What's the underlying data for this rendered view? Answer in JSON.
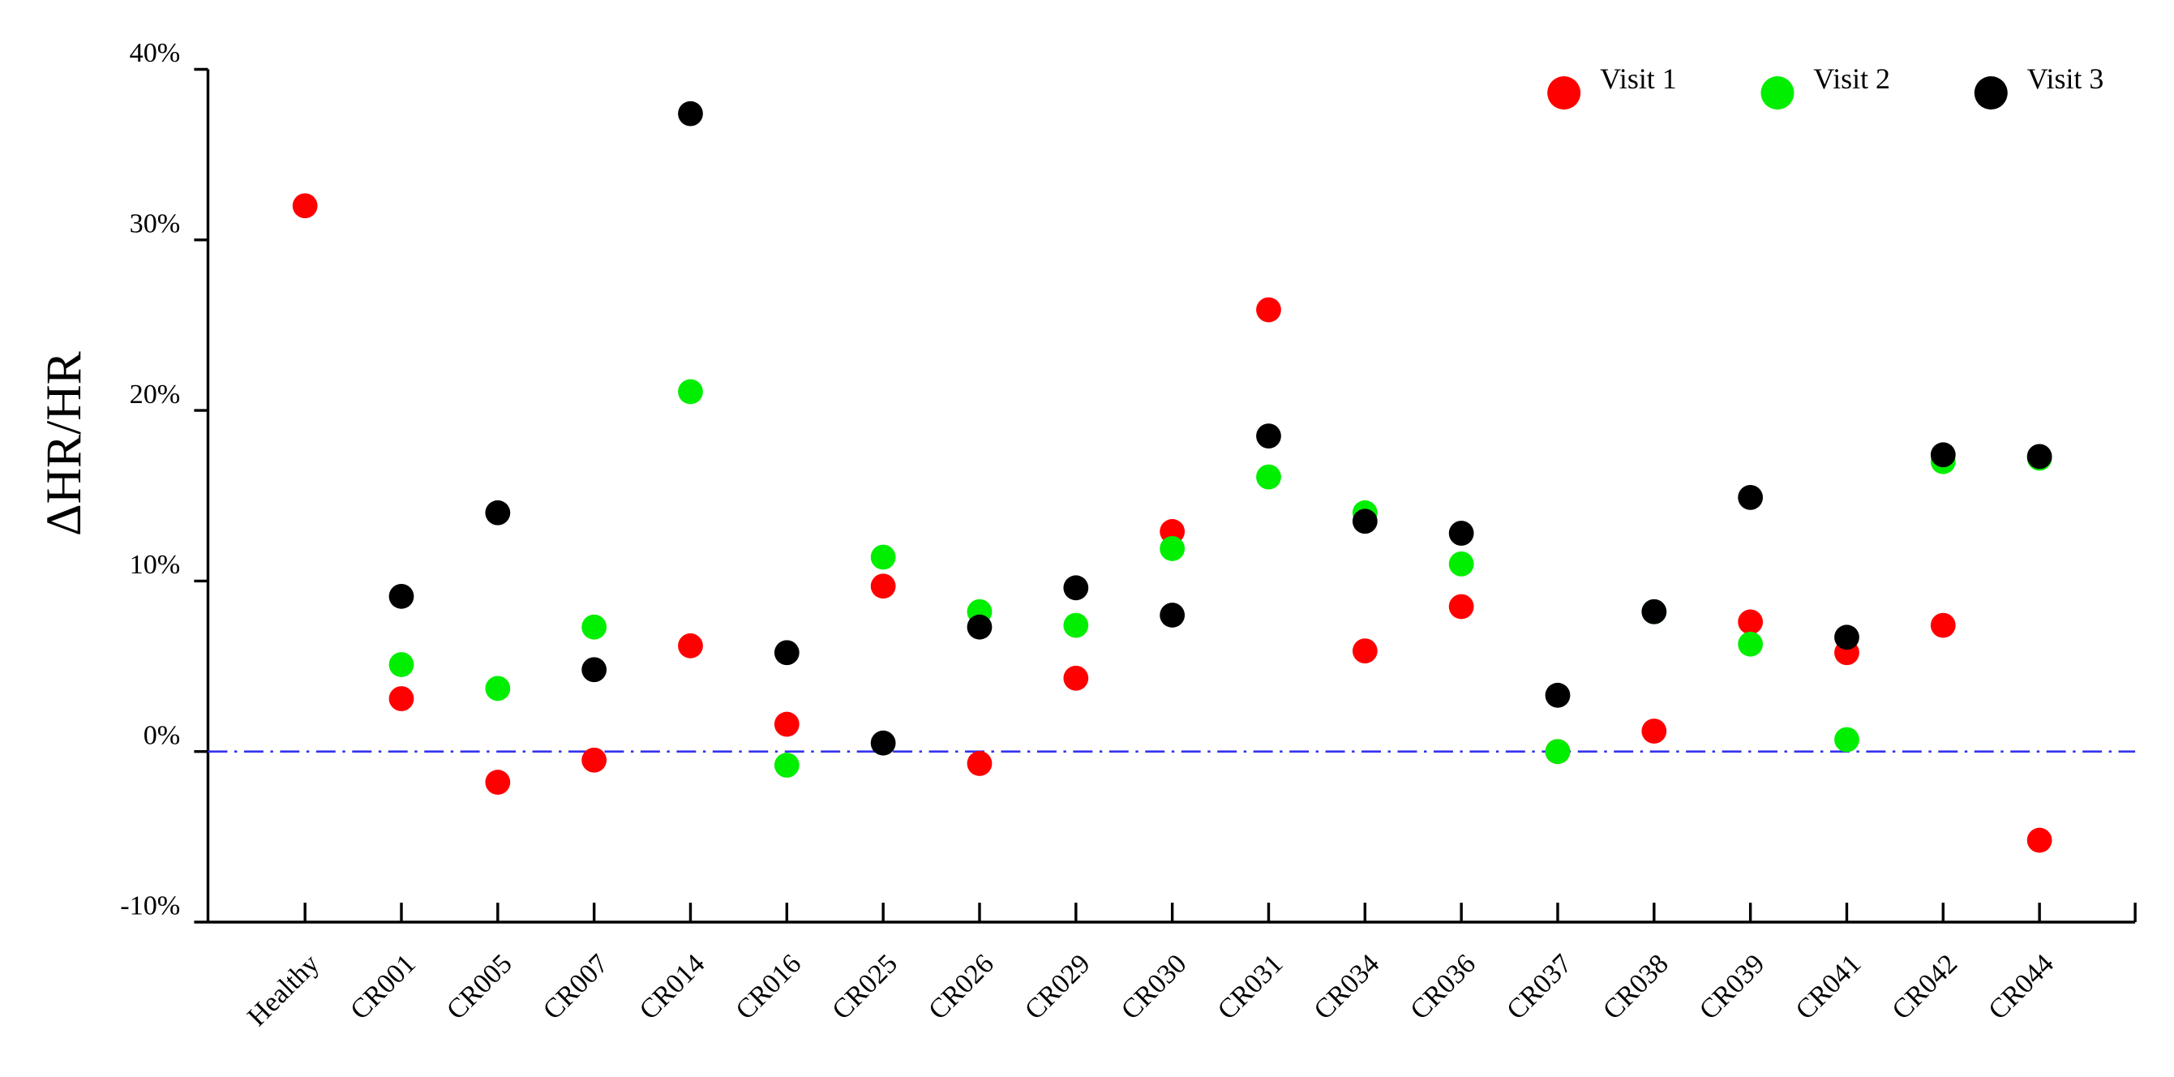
{
  "chart_data": {
    "type": "scatter",
    "y_label": "ΔHR/HR",
    "categories": [
      "Healthy",
      "CR001",
      "CR005",
      "CR007",
      "CR014",
      "CR016",
      "CR025",
      "CR026",
      "CR029",
      "CR030",
      "CR031",
      "CR034",
      "CR036",
      "CR037",
      "CR038",
      "CR039",
      "CR041",
      "CR042",
      "CR044"
    ],
    "series": [
      {
        "name": "Visit 1",
        "color": "#ff0000",
        "values": [
          32.0,
          3.1,
          -1.8,
          -0.5,
          6.2,
          1.6,
          9.7,
          -0.7,
          4.3,
          12.9,
          25.9,
          5.9,
          8.5,
          0.0,
          1.2,
          7.6,
          5.8,
          7.4,
          -5.2
        ]
      },
      {
        "name": "Visit 2",
        "color": "#00ee00",
        "values": [
          null,
          5.1,
          3.7,
          7.3,
          21.1,
          -0.8,
          11.4,
          8.2,
          7.4,
          11.9,
          16.1,
          14.0,
          11.0,
          0.0,
          8.2,
          6.3,
          0.7,
          17.0,
          17.2
        ]
      },
      {
        "name": "Visit 3",
        "color": "#000000",
        "values": [
          null,
          9.1,
          14.0,
          4.8,
          37.4,
          5.8,
          0.5,
          7.3,
          9.6,
          8.0,
          18.5,
          13.5,
          12.8,
          3.3,
          8.2,
          14.9,
          6.7,
          17.4,
          17.3
        ]
      }
    ],
    "ylim": [
      -10,
      40
    ],
    "yticks": [
      {
        "value": -10,
        "label": "-10%"
      },
      {
        "value": 0,
        "label": "0%"
      },
      {
        "value": 10,
        "label": "10%"
      },
      {
        "value": 20,
        "label": "20%"
      },
      {
        "value": 30,
        "label": "30%"
      },
      {
        "value": 40,
        "label": "40%"
      }
    ],
    "reference_line": {
      "value": 0,
      "color": "#3333ee"
    },
    "legend": "upper right",
    "grid": false
  }
}
